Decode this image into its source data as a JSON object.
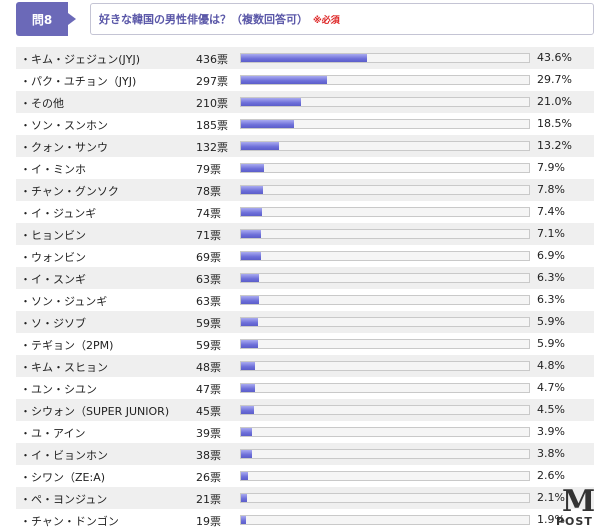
{
  "header": {
    "badge": "問8",
    "question": "好きな韓国の男性俳優は？（複数回答可）",
    "required": "※必須"
  },
  "logo": {
    "m": "M",
    "post": "POST"
  },
  "chart_data": {
    "type": "bar",
    "orientation": "horizontal",
    "xlim": [
      0,
      100
    ],
    "bar_color": "#6d6fd9",
    "rows": [
      {
        "name": "・キム・ジェジュン(JYJ)",
        "votes": "436票",
        "pct_label": "43.6%",
        "value": 43.6
      },
      {
        "name": "・パク・ユチョン（JYJ)",
        "votes": "297票",
        "pct_label": "29.7%",
        "value": 29.7
      },
      {
        "name": "・その他",
        "votes": "210票",
        "pct_label": "21.0%",
        "value": 21.0
      },
      {
        "name": "・ソン・スンホン",
        "votes": "185票",
        "pct_label": "18.5%",
        "value": 18.5
      },
      {
        "name": "・クォン・サンウ",
        "votes": "132票",
        "pct_label": "13.2%",
        "value": 13.2
      },
      {
        "name": "・イ・ミンホ",
        "votes": "79票",
        "pct_label": "7.9%",
        "value": 7.9
      },
      {
        "name": "・チャン・グンソク",
        "votes": "78票",
        "pct_label": "7.8%",
        "value": 7.8
      },
      {
        "name": "・イ・ジュンギ",
        "votes": "74票",
        "pct_label": "7.4%",
        "value": 7.4
      },
      {
        "name": "・ヒョンビン",
        "votes": "71票",
        "pct_label": "7.1%",
        "value": 7.1
      },
      {
        "name": "・ウォンビン",
        "votes": "69票",
        "pct_label": "6.9%",
        "value": 6.9
      },
      {
        "name": "・イ・スンギ",
        "votes": "63票",
        "pct_label": "6.3%",
        "value": 6.3
      },
      {
        "name": "・ソン・ジュンギ",
        "votes": "63票",
        "pct_label": "6.3%",
        "value": 6.3
      },
      {
        "name": "・ソ・ジソブ",
        "votes": "59票",
        "pct_label": "5.9%",
        "value": 5.9
      },
      {
        "name": "・テギョン（2PM)",
        "votes": "59票",
        "pct_label": "5.9%",
        "value": 5.9
      },
      {
        "name": "・キム・スヒョン",
        "votes": "48票",
        "pct_label": "4.8%",
        "value": 4.8
      },
      {
        "name": "・ユン・シユン",
        "votes": "47票",
        "pct_label": "4.7%",
        "value": 4.7
      },
      {
        "name": "・シウォン（SUPER JUNIOR)",
        "votes": "45票",
        "pct_label": "4.5%",
        "value": 4.5
      },
      {
        "name": "・ユ・アイン",
        "votes": "39票",
        "pct_label": "3.9%",
        "value": 3.9
      },
      {
        "name": "・イ・ビョンホン",
        "votes": "38票",
        "pct_label": "3.8%",
        "value": 3.8
      },
      {
        "name": "・シワン（ZE:A)",
        "votes": "26票",
        "pct_label": "2.6%",
        "value": 2.6
      },
      {
        "name": "・ペ・ヨンジュン",
        "votes": "21票",
        "pct_label": "2.1%",
        "value": 2.1
      },
      {
        "name": "・チャン・ドンゴン",
        "votes": "19票",
        "pct_label": "1.9%",
        "value": 1.9
      }
    ]
  }
}
